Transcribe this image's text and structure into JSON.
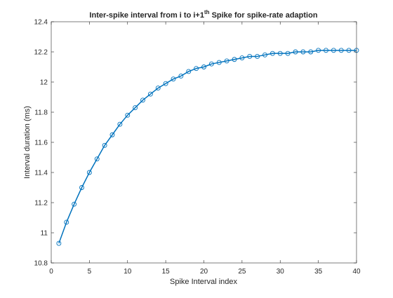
{
  "chart_data": {
    "type": "line",
    "title": {
      "prefix": "Inter-spike interval from i to i+1",
      "superscript": "th",
      "suffix": " Spike for spike-rate adaption"
    },
    "xlabel": "Spike Interval index",
    "ylabel": "Interval duration (ms)",
    "xlim": [
      0,
      40
    ],
    "ylim": [
      10.8,
      12.4
    ],
    "xticks": [
      0,
      5,
      10,
      15,
      20,
      25,
      30,
      35,
      40
    ],
    "xtick_labels": [
      "0",
      "5",
      "10",
      "15",
      "20",
      "25",
      "30",
      "35",
      "40"
    ],
    "yticks": [
      10.8,
      11,
      11.2,
      11.4,
      11.6,
      11.8,
      12,
      12.2,
      12.4
    ],
    "ytick_labels": [
      "10.8",
      "11",
      "11.2",
      "11.4",
      "11.6",
      "11.8",
      "12",
      "12.2",
      "12.4"
    ],
    "grid": false,
    "series": [
      {
        "color": "#0072bd",
        "marker": "circle",
        "x": [
          1,
          2,
          3,
          4,
          5,
          6,
          7,
          8,
          9,
          10,
          11,
          12,
          13,
          14,
          15,
          16,
          17,
          18,
          19,
          20,
          21,
          22,
          23,
          24,
          25,
          26,
          27,
          28,
          29,
          30,
          31,
          32,
          33,
          34,
          35,
          36,
          37,
          38,
          39,
          40
        ],
        "y": [
          10.93,
          11.07,
          11.19,
          11.3,
          11.4,
          11.49,
          11.58,
          11.65,
          11.72,
          11.78,
          11.83,
          11.88,
          11.92,
          11.96,
          11.99,
          12.02,
          12.04,
          12.07,
          12.09,
          12.1,
          12.12,
          12.13,
          12.14,
          12.15,
          12.16,
          12.17,
          12.17,
          12.18,
          12.19,
          12.19,
          12.19,
          12.2,
          12.2,
          12.2,
          12.21,
          12.21,
          12.21,
          12.21,
          12.21,
          12.21
        ]
      }
    ]
  }
}
